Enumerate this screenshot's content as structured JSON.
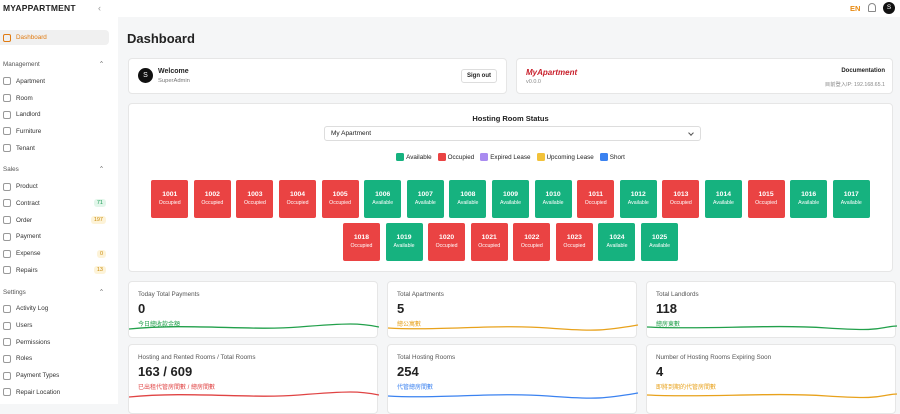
{
  "header": {
    "brand": "MYAPPARTMENT",
    "language": "EN",
    "avatar": "S"
  },
  "sidebar": {
    "top": {
      "label": "Dashboard"
    },
    "sections": [
      {
        "title": "Management",
        "items": [
          {
            "label": "Apartment"
          },
          {
            "label": "Room"
          },
          {
            "label": "Landlord"
          },
          {
            "label": "Furniture"
          },
          {
            "label": "Tenant"
          }
        ]
      },
      {
        "title": "Sales",
        "items": [
          {
            "label": "Product"
          },
          {
            "label": "Contract",
            "badge": 71
          },
          {
            "label": "Order",
            "badge": 197
          },
          {
            "label": "Payment"
          },
          {
            "label": "Expense",
            "badge": 0
          },
          {
            "label": "Repairs",
            "badge": 13
          }
        ]
      },
      {
        "title": "Settings",
        "items": [
          {
            "label": "Activity Log"
          },
          {
            "label": "Users"
          },
          {
            "label": "Permissions"
          },
          {
            "label": "Roles"
          },
          {
            "label": "Payment Types"
          },
          {
            "label": "Repair Location"
          }
        ]
      }
    ]
  },
  "page": {
    "title": "Dashboard"
  },
  "welcome": {
    "avatar": "S",
    "title": "Welcome",
    "user": "SuperAdmin",
    "button": "Sign out"
  },
  "about": {
    "brand": "MyApartment",
    "version": "v0.0.0",
    "link": "Documentation",
    "ip": "目前登入IP: 192.168.65.1"
  },
  "room_status": {
    "title": "Hosting Room Status",
    "selected": "My Apartment",
    "legend": [
      {
        "label": "Available",
        "color": "#16b27f"
      },
      {
        "label": "Occupied",
        "color": "#ea4343"
      },
      {
        "label": "Expired Lease",
        "color": "#a98bf0"
      },
      {
        "label": "Upcoming Lease",
        "color": "#f2c23a"
      },
      {
        "label": "Short",
        "color": "#3b82f0"
      }
    ],
    "rows": [
      [
        {
          "number": "1001",
          "status": "Occupied"
        },
        {
          "number": "1002",
          "status": "Occupied"
        },
        {
          "number": "1003",
          "status": "Occupied"
        },
        {
          "number": "1004",
          "status": "Occupied"
        },
        {
          "number": "1005",
          "status": "Occupied"
        },
        {
          "number": "1006",
          "status": "Available"
        },
        {
          "number": "1007",
          "status": "Available"
        },
        {
          "number": "1008",
          "status": "Available"
        },
        {
          "number": "1009",
          "status": "Available"
        },
        {
          "number": "1010",
          "status": "Available"
        },
        {
          "number": "1011",
          "status": "Occupied"
        },
        {
          "number": "1012",
          "status": "Available"
        },
        {
          "number": "1013",
          "status": "Occupied"
        },
        {
          "number": "1014",
          "status": "Available"
        },
        {
          "number": "1015",
          "status": "Occupied"
        },
        {
          "number": "1016",
          "status": "Available"
        },
        {
          "number": "1017",
          "status": "Available"
        }
      ],
      [
        {
          "number": "1018",
          "status": "Occupied"
        },
        {
          "number": "1019",
          "status": "Available"
        },
        {
          "number": "1020",
          "status": "Occupied"
        },
        {
          "number": "1021",
          "status": "Occupied"
        },
        {
          "number": "1022",
          "status": "Occupied"
        },
        {
          "number": "1023",
          "status": "Occupied"
        },
        {
          "number": "1024",
          "status": "Available"
        },
        {
          "number": "1025",
          "status": "Available"
        }
      ]
    ]
  },
  "stats": [
    {
      "title": "Today Total Payments",
      "value": 0,
      "caption": "今日總收款金額",
      "color": "#22a04b"
    },
    {
      "title": "Total Apartments",
      "value": 5,
      "caption": "總公寓數",
      "color": "#e8a21c"
    },
    {
      "title": "Total Landlords",
      "value": 118,
      "caption": "總房東數",
      "color": "#22a04b"
    },
    {
      "title": "Hosting and Rented Rooms / Total Rooms",
      "value": "163 / 609",
      "caption": "已出租代管房間數 / 總房間數",
      "color": "#e04444"
    },
    {
      "title": "Total Hosting Rooms",
      "value": 254,
      "caption": "代管總房間數",
      "color": "#3b82f0"
    },
    {
      "title": "Number of Hosting Rooms Expiring Soon",
      "value": 4,
      "caption": "即將到期的代管房間數",
      "color": "#e8a21c"
    }
  ]
}
